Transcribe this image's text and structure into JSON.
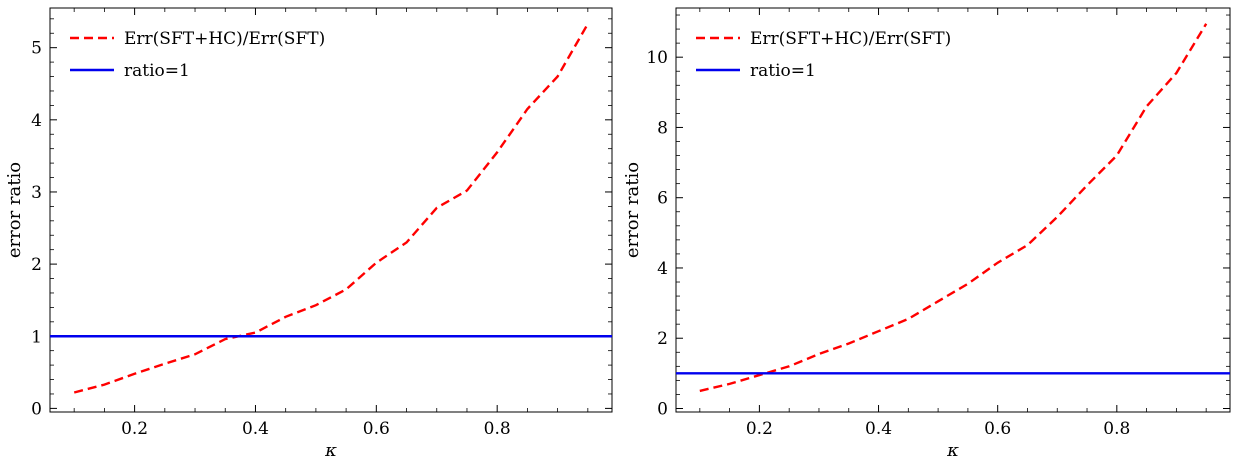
{
  "chart_data": [
    {
      "type": "line",
      "xlabel": "κ",
      "ylabel": "error ratio",
      "xlim": [
        0.06,
        0.99
      ],
      "ylim": [
        -0.05,
        5.55
      ],
      "xticks": [
        0.2,
        0.4,
        0.6,
        0.8
      ],
      "yticks": [
        0,
        1,
        2,
        3,
        4,
        5
      ],
      "xtick_labels": [
        "0.2",
        "0.4",
        "0.6",
        "0.8"
      ],
      "ytick_labels": [
        "0",
        "1",
        "2",
        "3",
        "4",
        "5"
      ],
      "legend_position": "top-left",
      "grid": false,
      "series": [
        {
          "name": "Err(SFT+HC)/Err(SFT)",
          "color": "#ff0000",
          "style": "dashed",
          "x": [
            0.1,
            0.15,
            0.2,
            0.25,
            0.3,
            0.35,
            0.4,
            0.45,
            0.5,
            0.55,
            0.6,
            0.65,
            0.7,
            0.75,
            0.8,
            0.85,
            0.9,
            0.95
          ],
          "y": [
            0.22,
            0.33,
            0.48,
            0.62,
            0.75,
            0.96,
            1.05,
            1.27,
            1.43,
            1.65,
            2.02,
            2.3,
            2.78,
            3.02,
            3.55,
            4.15,
            4.6,
            5.33
          ]
        },
        {
          "name": "ratio=1",
          "color": "#0000ee",
          "style": "solid",
          "hline": 1
        }
      ]
    },
    {
      "type": "line",
      "xlabel": "κ",
      "ylabel": "error ratio",
      "xlim": [
        0.06,
        0.99
      ],
      "ylim": [
        -0.1,
        11.4
      ],
      "xticks": [
        0.2,
        0.4,
        0.6,
        0.8
      ],
      "yticks": [
        0,
        2,
        4,
        6,
        8,
        10
      ],
      "xtick_labels": [
        "0.2",
        "0.4",
        "0.6",
        "0.8"
      ],
      "ytick_labels": [
        "0",
        "2",
        "4",
        "6",
        "8",
        "10"
      ],
      "legend_position": "top-left",
      "grid": false,
      "series": [
        {
          "name": "Err(SFT+HC)/Err(SFT)",
          "color": "#ff0000",
          "style": "dashed",
          "x": [
            0.1,
            0.15,
            0.2,
            0.25,
            0.3,
            0.35,
            0.4,
            0.45,
            0.5,
            0.55,
            0.6,
            0.65,
            0.7,
            0.75,
            0.8,
            0.85,
            0.9,
            0.95
          ],
          "y": [
            0.5,
            0.7,
            0.95,
            1.2,
            1.55,
            1.85,
            2.2,
            2.55,
            3.05,
            3.55,
            4.15,
            4.65,
            5.45,
            6.35,
            7.2,
            8.6,
            9.55,
            10.95
          ]
        },
        {
          "name": "ratio=1",
          "color": "#0000ee",
          "style": "solid",
          "hline": 1
        }
      ]
    }
  ]
}
